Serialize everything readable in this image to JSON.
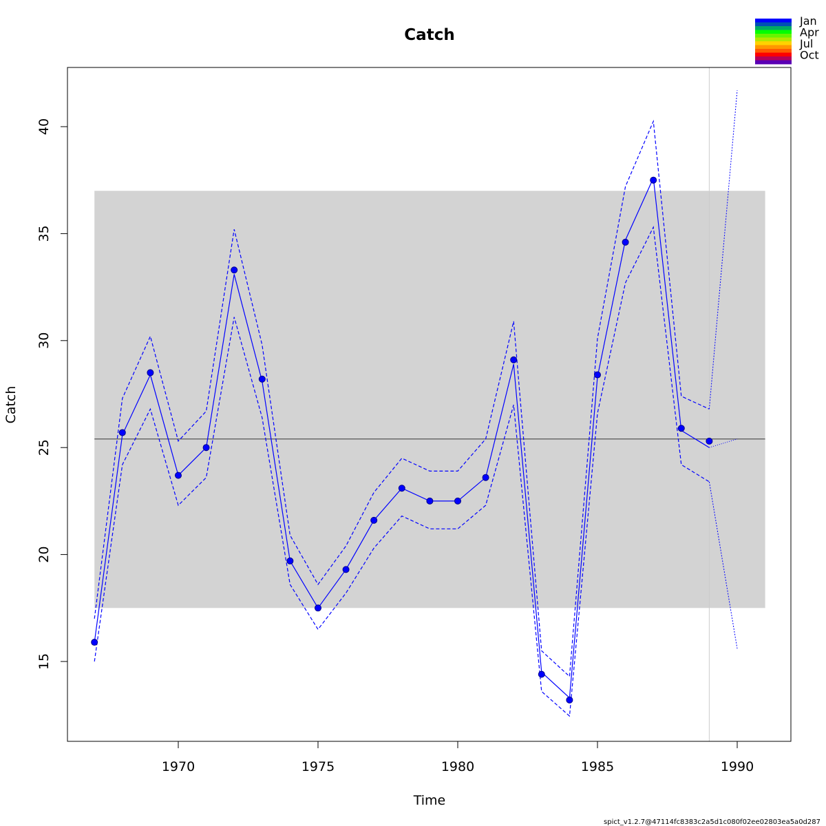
{
  "chart_data": {
    "type": "line",
    "title": "Catch",
    "xlabel": "Time",
    "ylabel": "Catch",
    "xlim": [
      1966.1,
      1992.0
    ],
    "ylim": [
      11.5,
      43.0
    ],
    "x_ticks": [
      1970,
      1975,
      1980,
      1985,
      1990
    ],
    "y_ticks": [
      15,
      20,
      25,
      30,
      35,
      40
    ],
    "grid": false,
    "observed": {
      "x": [
        1967,
        1968,
        1969,
        1970,
        1971,
        1972,
        1973,
        1974,
        1975,
        1976,
        1977,
        1978,
        1979,
        1980,
        1981,
        1982,
        1983,
        1984,
        1985,
        1986,
        1987,
        1988,
        1989
      ],
      "values": [
        15.9,
        25.7,
        28.5,
        23.7,
        25.0,
        33.3,
        28.2,
        19.7,
        17.5,
        19.3,
        21.6,
        23.1,
        22.5,
        22.5,
        23.6,
        29.1,
        14.4,
        13.2,
        28.4,
        34.6,
        37.5,
        25.9,
        25.3
      ]
    },
    "fitted": {
      "x": [
        1967,
        1968,
        1969,
        1970,
        1971,
        1972,
        1973,
        1974,
        1975,
        1976,
        1977,
        1978,
        1979,
        1980,
        1981,
        1982,
        1983,
        1984,
        1985,
        1986,
        1987,
        1988,
        1989
      ],
      "values": [
        15.9,
        25.6,
        28.4,
        23.7,
        25.0,
        33.1,
        28.1,
        19.7,
        17.5,
        19.3,
        21.6,
        23.1,
        22.5,
        22.5,
        23.6,
        28.9,
        14.5,
        13.3,
        28.3,
        34.7,
        37.6,
        25.8,
        25.0
      ]
    },
    "upper_ci": {
      "x": [
        1967,
        1968,
        1969,
        1970,
        1971,
        1972,
        1973,
        1974,
        1975,
        1976,
        1977,
        1978,
        1979,
        1980,
        1981,
        1982,
        1983,
        1984,
        1985,
        1986,
        1987,
        1988,
        1989
      ],
      "values": [
        17.0,
        27.3,
        30.2,
        25.3,
        26.7,
        35.2,
        29.8,
        20.9,
        18.6,
        20.4,
        22.9,
        24.5,
        23.9,
        23.9,
        25.4,
        30.9,
        15.5,
        14.3,
        30.1,
        37.2,
        40.25,
        27.4,
        26.8
      ]
    },
    "lower_ci": {
      "x": [
        1967,
        1968,
        1969,
        1970,
        1971,
        1972,
        1973,
        1974,
        1975,
        1976,
        1977,
        1978,
        1979,
        1980,
        1981,
        1982,
        1983,
        1984,
        1985,
        1986,
        1987,
        1988,
        1989
      ],
      "values": [
        15.0,
        24.2,
        26.8,
        22.3,
        23.6,
        31.1,
        26.4,
        18.6,
        16.5,
        18.2,
        20.3,
        21.8,
        21.2,
        21.2,
        22.3,
        27.0,
        13.6,
        12.45,
        26.6,
        32.7,
        35.3,
        24.2,
        23.4
      ]
    },
    "prediction": {
      "x": [
        1989,
        1990
      ],
      "fitted": [
        25.0,
        25.4
      ],
      "upper": [
        26.8,
        41.7
      ],
      "lower": [
        23.4,
        15.6
      ]
    },
    "band": {
      "x": [
        1967,
        1991
      ],
      "y": [
        17.5,
        37.0
      ]
    },
    "mean_line": 25.4,
    "vline_x": 1989,
    "legend": {
      "placement": "top-right",
      "labels": [
        "Jan",
        "Apr",
        "Jul",
        "Oct"
      ],
      "colors": [
        "#0000ff",
        "#0050b4",
        "#00a864",
        "#00ff00",
        "#66f400",
        "#b4e600",
        "#ffd200",
        "#ff9600",
        "#ff5a00",
        "#ff0000",
        "#b4005a",
        "#5a00b4"
      ]
    },
    "colors": {
      "series": "#0000ff",
      "band": "#d3d3d3",
      "mean_line": "#555555",
      "vline": "#cccccc"
    }
  },
  "footer": "spict_v1.2.7@47114fc8383c2a5d1c080f02ee02803ea5a0d287"
}
